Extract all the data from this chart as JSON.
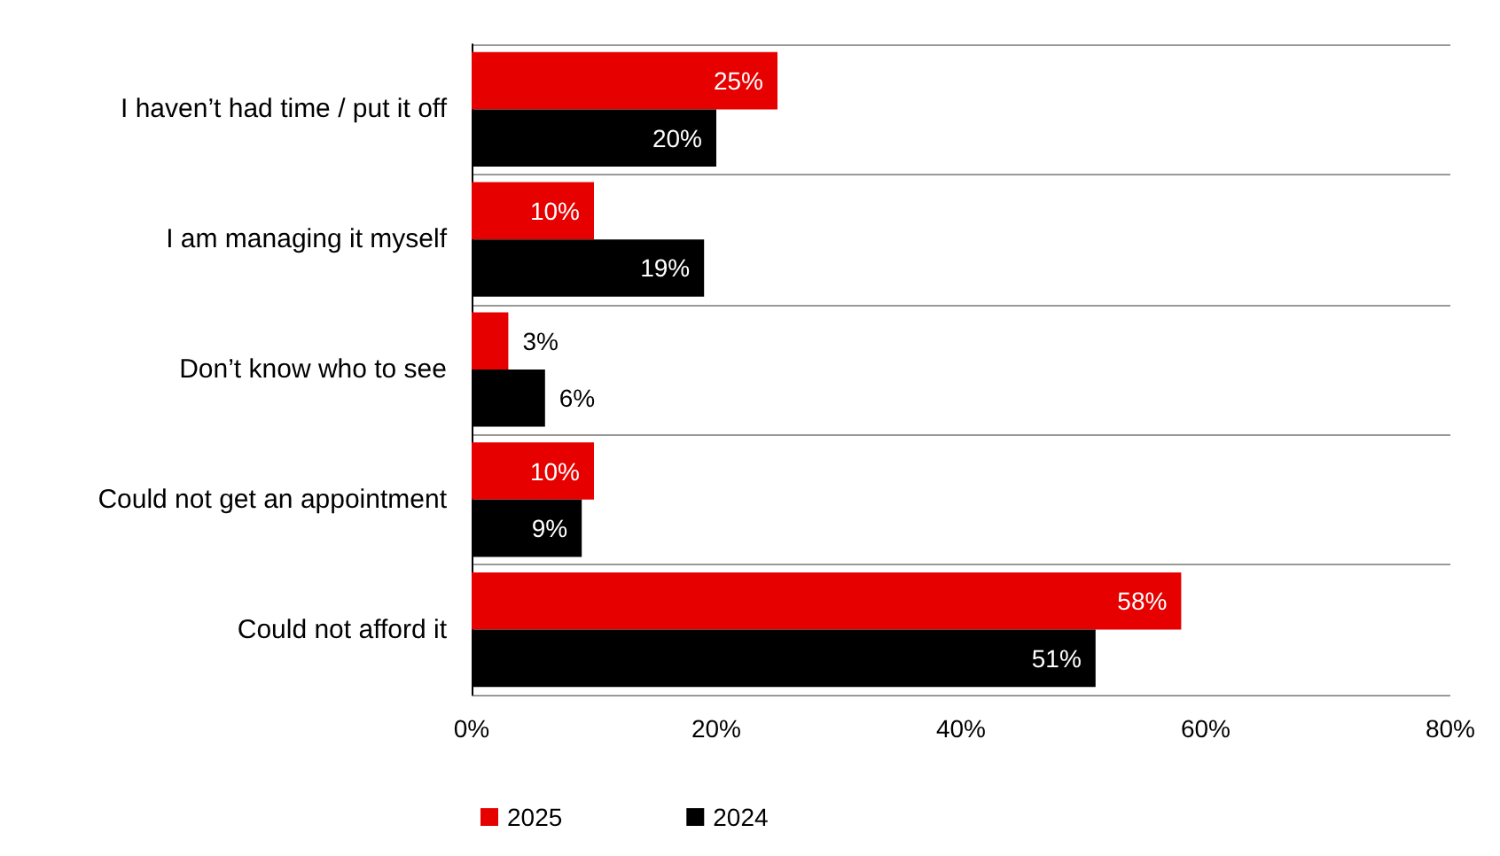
{
  "chart_data": {
    "type": "bar",
    "orientation": "horizontal",
    "categories": [
      "I haven’t had time / put it off",
      "I am managing it myself",
      "Don’t know who to see",
      "Could not get an appointment",
      "Could not afford it"
    ],
    "series": [
      {
        "name": "2025",
        "color": "#e60000",
        "values": [
          25,
          10,
          3,
          10,
          58
        ],
        "value_labels": [
          "25%",
          "10%",
          "3%",
          "10%",
          "58%"
        ]
      },
      {
        "name": "2024",
        "color": "#000000",
        "values": [
          20,
          19,
          6,
          9,
          51
        ],
        "value_labels": [
          "20%",
          "19%",
          "6%",
          "9%",
          "51%"
        ]
      }
    ],
    "xlim": [
      0,
      80
    ],
    "xticks": [
      {
        "value": 0,
        "label": "0%"
      },
      {
        "value": 20,
        "label": "20%"
      },
      {
        "value": 40,
        "label": "40%"
      },
      {
        "value": 60,
        "label": "60%"
      },
      {
        "value": 80,
        "label": "80%"
      }
    ],
    "grid": "y",
    "legend": "bottom left"
  }
}
